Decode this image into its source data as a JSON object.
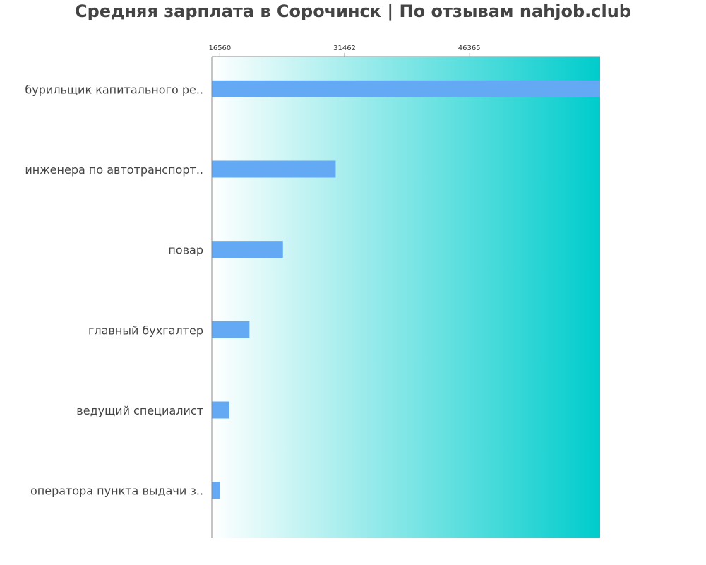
{
  "title": "Средняя зарплата в Сорочинск | По отзывам nahjob.club",
  "colors": {
    "bar": "#63a9f3",
    "gradient_start": "#ffffff",
    "gradient_end": "#00cccc",
    "axis": "#888888",
    "text": "#444444"
  },
  "chart_data": {
    "type": "bar",
    "orientation": "horizontal",
    "title": "Средняя зарплата в Сорочинск | По отзывам nahjob.club",
    "xlabel": "",
    "ylabel": "",
    "xlim": [
      15600,
      62000
    ],
    "x_ticks": [
      16560,
      31462,
      46365
    ],
    "grid": false,
    "categories": [
      "бурильщик капитального ре..",
      "инженера по автотранспорт..",
      "повар",
      "главный бухгалтер",
      "ведущий специалист",
      "оператора пункта выдачи з.."
    ],
    "values": [
      62000,
      30400,
      24100,
      20100,
      17700,
      16600
    ]
  }
}
